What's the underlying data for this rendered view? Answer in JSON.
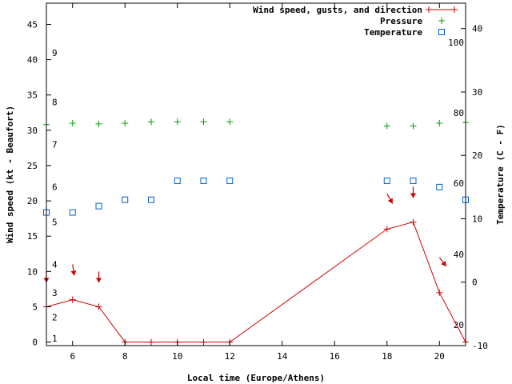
{
  "chart_data": {
    "type": "line",
    "x_axis": {
      "label": "Local time (Europe/Athens)",
      "range": [
        5,
        21
      ],
      "ticks": [
        6,
        8,
        10,
        12,
        14,
        16,
        18,
        20
      ],
      "tick_labels": [
        "6",
        "8",
        "10",
        "12",
        "14",
        "16",
        "18",
        "20"
      ]
    },
    "y_left": {
      "label": "Wind speed (kt - Beaufort)",
      "range": [
        -0.5,
        48
      ],
      "ticks": [
        0,
        5,
        10,
        15,
        20,
        25,
        30,
        35,
        40,
        45
      ],
      "tick_labels": [
        "0",
        "5",
        "10",
        "15",
        "20",
        "25",
        "30",
        "35",
        "40",
        "45"
      ],
      "beaufort_labels": [
        {
          "value": 0.5,
          "label": "1"
        },
        {
          "value": 3.5,
          "label": "2"
        },
        {
          "value": 7,
          "label": "3"
        },
        {
          "value": 11,
          "label": "4"
        },
        {
          "value": 17,
          "label": "5"
        },
        {
          "value": 22,
          "label": "6"
        },
        {
          "value": 28,
          "label": "7"
        },
        {
          "value": 34,
          "label": "8"
        },
        {
          "value": 41,
          "label": "9"
        }
      ]
    },
    "y_right": {
      "label": "Temperature (C - F)",
      "range": [
        -10,
        44
      ],
      "ticks": [
        -10,
        0,
        10,
        20,
        30,
        40
      ],
      "tick_labels": [
        "-10",
        "0",
        "10",
        "20",
        "30",
        "40"
      ],
      "fahrenheit_labels": [
        {
          "value": -6.7,
          "label": "20"
        },
        {
          "value": 4.4,
          "label": "40"
        },
        {
          "value": 15.6,
          "label": "60"
        },
        {
          "value": 26.7,
          "label": "80"
        },
        {
          "value": 37.8,
          "label": "100"
        }
      ]
    },
    "series": [
      {
        "name": "Wind speed, gusts, and direction",
        "color": "#cc0000",
        "axis": "left",
        "x": [
          5,
          6,
          7,
          8,
          9,
          10,
          11,
          12,
          18,
          19,
          20,
          21
        ],
        "y": [
          5,
          6,
          5,
          0,
          0,
          0,
          0,
          0,
          16,
          17,
          7,
          0
        ]
      },
      {
        "name": "Pressure",
        "color": "#00a000",
        "axis": "left",
        "x": [
          5,
          6,
          7,
          8,
          9,
          10,
          11,
          12,
          18,
          19,
          20,
          21
        ],
        "y": [
          30.8,
          31.0,
          30.9,
          31.0,
          31.2,
          31.2,
          31.2,
          31.2,
          30.6,
          30.6,
          31.0,
          31.1
        ]
      },
      {
        "name": "Temperature",
        "color": "#0060d0",
        "axis": "right",
        "x": [
          5,
          6,
          7,
          8,
          9,
          10,
          11,
          12,
          18,
          19,
          20,
          21
        ],
        "y": [
          11,
          11,
          12,
          13,
          13,
          16,
          16,
          16,
          16,
          16,
          15,
          13
        ]
      }
    ],
    "wind_direction_arrows": [
      {
        "x": 5,
        "speed": 10,
        "dx": 0,
        "dy": 1
      },
      {
        "x": 6,
        "speed": 11,
        "dx": 0.15,
        "dy": 1
      },
      {
        "x": 7,
        "speed": 10,
        "dx": 0,
        "dy": 1
      },
      {
        "x": 18,
        "speed": 21,
        "dx": 0.5,
        "dy": 0.87
      },
      {
        "x": 19,
        "speed": 22,
        "dx": 0,
        "dy": 1
      },
      {
        "x": 20,
        "speed": 12,
        "dx": 0.6,
        "dy": 0.8
      }
    ],
    "legend_position": "top-right",
    "grid": false
  }
}
